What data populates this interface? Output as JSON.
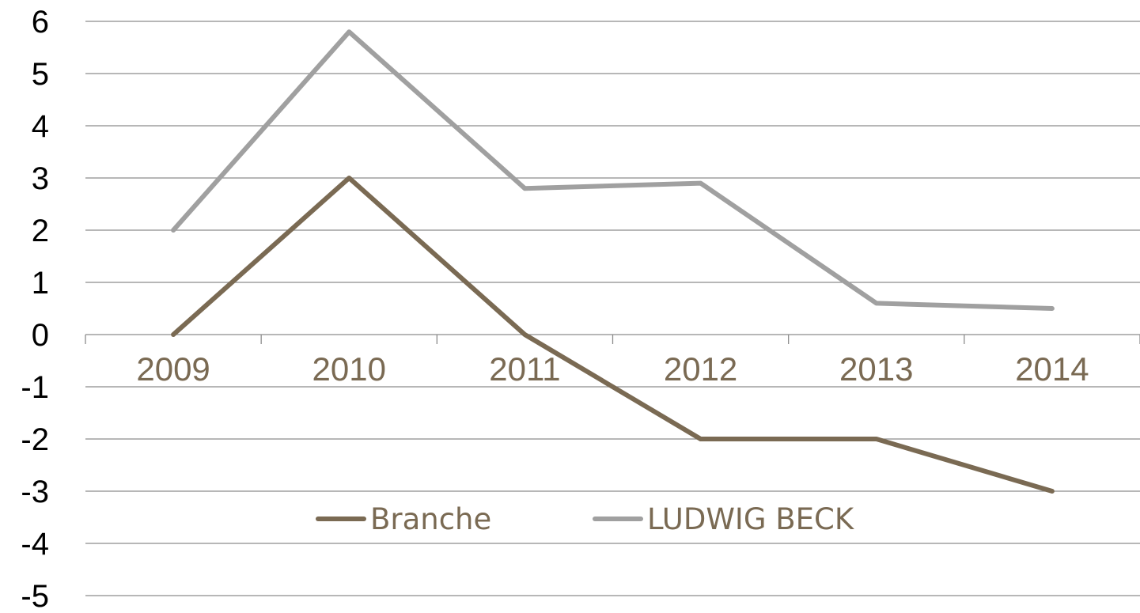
{
  "chart_data": {
    "type": "line",
    "title": "",
    "xlabel": "",
    "ylabel": "",
    "categories": [
      "2009",
      "2010",
      "2011",
      "2012",
      "2013",
      "2014"
    ],
    "ylim": [
      -5,
      6
    ],
    "yticks": [
      6,
      5,
      4,
      3,
      2,
      1,
      0,
      -1,
      -2,
      -3,
      -4,
      -5
    ],
    "grid": true,
    "legend_position": "bottom-center",
    "series": [
      {
        "name": "Branche",
        "values": [
          0,
          3,
          0,
          -2,
          -2,
          -3
        ],
        "color": "#7a6a53"
      },
      {
        "name": "LUDWIG BECK",
        "values": [
          2,
          5.8,
          2.8,
          2.9,
          0.6,
          0.5
        ],
        "color": "#a0a0a0"
      }
    ],
    "tick_label_color": "#7a6a53"
  }
}
